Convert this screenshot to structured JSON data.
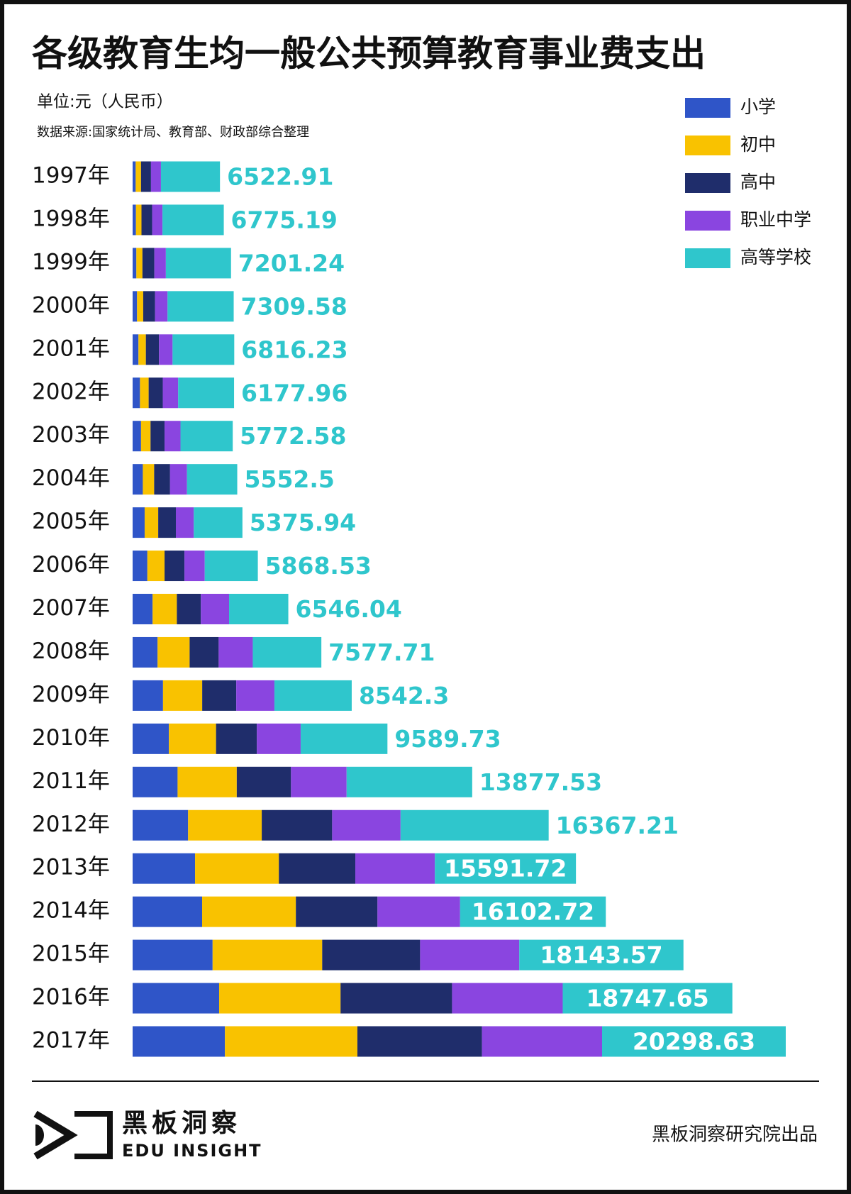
{
  "chart_data": {
    "type": "stacked-bar",
    "title": "各级教育生均一般公共预算教育事业费支出",
    "unit": "单位:元（人民币）",
    "source": "数据来源:国家统计局、教育部、财政部综合整理",
    "categories": [
      "1997年",
      "1998年",
      "1999年",
      "2000年",
      "2001年",
      "2002年",
      "2003年",
      "2004年",
      "2005年",
      "2006年",
      "2007年",
      "2008年",
      "2009年",
      "2010年",
      "2011年",
      "2012年",
      "2013年",
      "2014年",
      "2015年",
      "2016年",
      "2017年"
    ],
    "series": [
      {
        "name": "小学",
        "color": "#2f55c8",
        "values": [
          340,
          370,
          414,
          491,
          645,
          813,
          931,
          1130,
          1330,
          1630,
          2210,
          2760,
          3360,
          4010,
          4970,
          6130,
          6900,
          7680,
          8840,
          9560,
          10200
        ]
      },
      {
        "name": "初中",
        "color": "#f9c200",
        "values": [
          590,
          610,
          670,
          680,
          820,
          960,
          1050,
          1250,
          1500,
          1900,
          2680,
          3540,
          4330,
          5210,
          6540,
          8140,
          9260,
          10360,
          12110,
          13420,
          14640
        ]
      },
      {
        "name": "高中",
        "color": "#1f2d6b",
        "values": [
          1100,
          1180,
          1320,
          1310,
          1450,
          1560,
          1550,
          1760,
          1950,
          2200,
          2650,
          3210,
          3760,
          4510,
          5990,
          7780,
          8450,
          9020,
          10820,
          12320,
          13770
        ]
      },
      {
        "name": "职业中学",
        "color": "#8a45e0",
        "values": [
          1100,
          1140,
          1270,
          1380,
          1500,
          1700,
          1760,
          1870,
          1980,
          2240,
          3120,
          3770,
          4220,
          4840,
          6150,
          7560,
          8790,
          9130,
          10960,
          12230,
          13270
        ]
      },
      {
        "name": "高等学校",
        "color": "#2fc6cc",
        "values": [
          6522.91,
          6775.19,
          7201.24,
          7309.58,
          6816.23,
          6177.96,
          5772.58,
          5552.5,
          5375.94,
          5868.53,
          6546.04,
          7577.71,
          8542.3,
          9589.73,
          13877.53,
          16367.21,
          15591.72,
          16102.72,
          18143.57,
          18747.65,
          20298.63
        ]
      }
    ],
    "data_labels": true,
    "legend": "top-right"
  },
  "footer": {
    "logo_cn": "黑板洞察",
    "logo_en": "EDU INSIGHT",
    "credit": "黑板洞察研究院出品"
  }
}
